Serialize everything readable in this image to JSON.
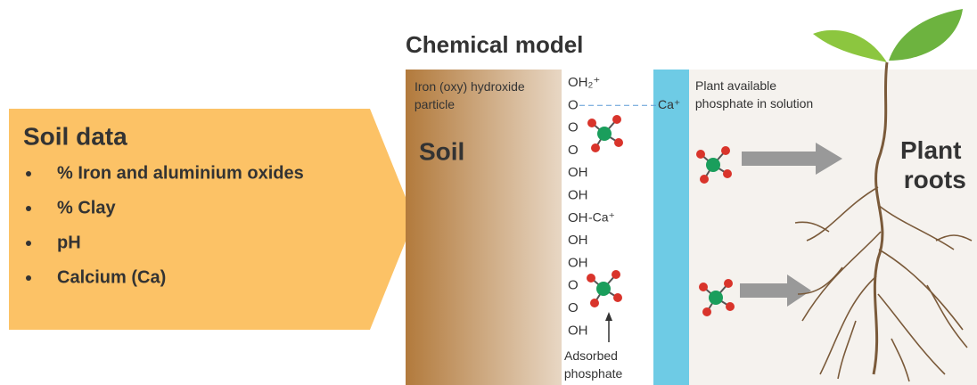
{
  "title": "Chemical model",
  "soil_data": {
    "heading": "Soil data",
    "items": [
      "% Iron and aluminium oxides",
      "% Clay",
      "pH",
      "Calcium (Ca)"
    ]
  },
  "particle": {
    "label": "Iron (oxy) hydroxide particle",
    "name": "Soil"
  },
  "surface_groups": [
    {
      "text": "OH₂⁺"
    },
    {
      "text": "O",
      "ca": "Ca⁺"
    },
    {
      "text": "O"
    },
    {
      "text": "O"
    },
    {
      "text": "OH"
    },
    {
      "text": "OH"
    },
    {
      "text": "OH",
      "ca": "-Ca⁺"
    },
    {
      "text": "OH"
    },
    {
      "text": "OH"
    },
    {
      "text": "O"
    },
    {
      "text": "O"
    },
    {
      "text": "OH"
    }
  ],
  "adsorbed_label": "Adsorbed phosphate",
  "solution_label": "Plant available phosphate in solution",
  "roots_label": "Plant roots"
}
